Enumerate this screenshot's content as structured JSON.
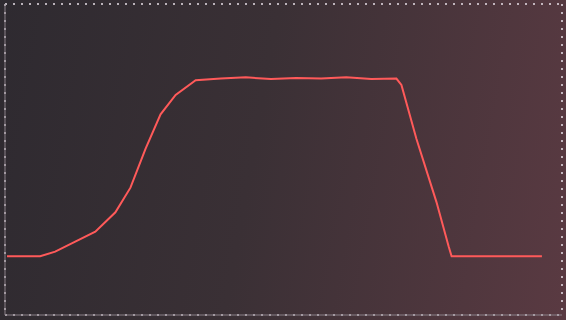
{
  "chart_data": {
    "type": "line",
    "x": [
      -0.33,
      0,
      0.15,
      0.35,
      0.55,
      0.75,
      0.9,
      1.05,
      1.2,
      1.35,
      1.55,
      1.8,
      2.05,
      2.3,
      2.55,
      2.8,
      3.05,
      3.3,
      3.55,
      3.6,
      3.75,
      3.95,
      4.07,
      4.1,
      4.5,
      5.0
    ],
    "values": [
      0,
      0,
      0.08,
      0.25,
      0.42,
      0.75,
      1.17,
      1.83,
      2.42,
      2.75,
      3.0,
      3.03,
      3.05,
      3.02,
      3.04,
      3.03,
      3.05,
      3.02,
      3.03,
      2.92,
      2.0,
      0.92,
      0.17,
      0,
      0,
      0
    ],
    "color": "#ff5a5a",
    "xlim": [
      -0.35,
      5.2
    ],
    "xticks": [
      0,
      1,
      2,
      3,
      4,
      5
    ],
    "ylim": [
      -1,
      4.3
    ],
    "yticks": [
      -1,
      0,
      1,
      2,
      3,
      4
    ],
    "grid": true,
    "tick_labels": false
  }
}
